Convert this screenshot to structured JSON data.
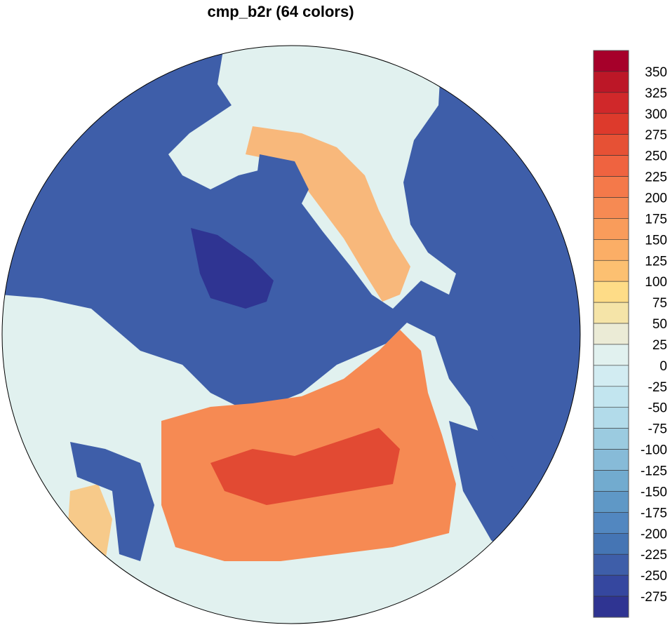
{
  "title": "cmp_b2r (64 colors)",
  "map": {
    "projection": "polar stereographic (north pole)",
    "ocean_color": "#3e5ea9"
  },
  "colorbar": {
    "labels": [
      "350",
      "325",
      "300",
      "275",
      "250",
      "225",
      "200",
      "175",
      "150",
      "125",
      "100",
      "75",
      "50",
      "25",
      "0",
      "-25",
      "-50",
      "-75",
      "-100",
      "-125",
      "-150",
      "-175",
      "-200",
      "-225",
      "-250",
      "-275"
    ],
    "colors": [
      "#a6002a",
      "#bc1727",
      "#d0282a",
      "#dd3a2c",
      "#e65135",
      "#ef6340",
      "#f4794a",
      "#f68a53",
      "#f99c5b",
      "#fbae66",
      "#fcc071",
      "#fedc87",
      "#f5e4a8",
      "#ebebd6",
      "#e1f1ef",
      "#d2ecf2",
      "#c2e5ef",
      "#b2dbea",
      "#9bcbe0",
      "#87bbd8",
      "#72abcf",
      "#5f98c6",
      "#5287c0",
      "#4575b4",
      "#3e5ea9",
      "#35479f",
      "#2f3492"
    ]
  }
}
